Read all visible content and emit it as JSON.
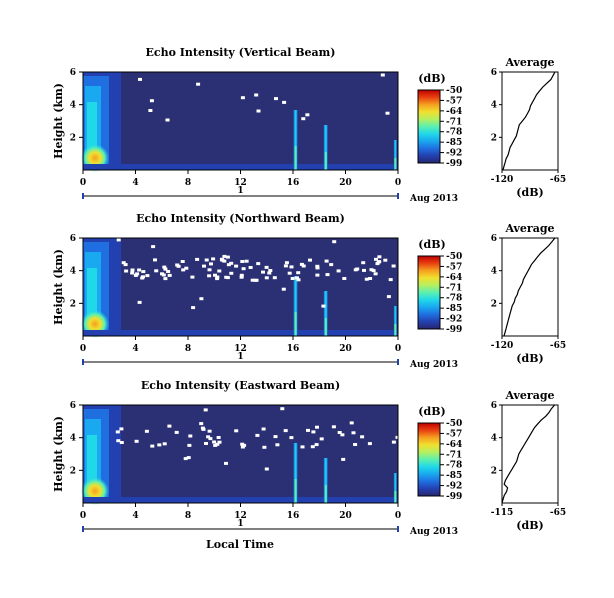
{
  "panels": [
    {
      "title": "Echo Intensity (Vertical Beam)",
      "average_title": "Average",
      "avg_xticks": [
        "-120",
        "-65"
      ],
      "avg_profile": [
        -68,
        -70,
        -72,
        -76,
        -80,
        -83,
        -86,
        -88,
        -90,
        -92,
        -93,
        -95,
        -97,
        -100,
        -103,
        -104,
        -105,
        -106,
        -108,
        -110,
        -112,
        -113,
        -114,
        -116,
        -117,
        -118,
        -119
      ]
    },
    {
      "title": "Echo Intensity (Northward Beam)",
      "average_title": "Average",
      "avg_xticks": [
        "-120",
        "-65"
      ],
      "avg_profile": [
        -68,
        -71,
        -74,
        -78,
        -82,
        -85,
        -88,
        -91,
        -93,
        -95,
        -97,
        -99,
        -100,
        -102,
        -104,
        -105,
        -107,
        -108,
        -110,
        -111,
        -112,
        -113,
        -114,
        -115,
        -116,
        -117,
        -118
      ]
    },
    {
      "title": "Echo Intensity (Eastward Beam)",
      "average_title": "Average",
      "avg_xticks": [
        "-115",
        "-65"
      ],
      "avg_profile": [
        -68,
        -71,
        -73,
        -76,
        -80,
        -83,
        -86,
        -88,
        -90,
        -92,
        -94,
        -96,
        -98,
        -100,
        -101,
        -102,
        -104,
        -106,
        -108,
        -110,
        -112,
        -113,
        -110,
        -111,
        -113,
        -114,
        -115
      ]
    }
  ],
  "ylabel": "Height (km)",
  "yticks": [
    "6",
    "4",
    "2"
  ],
  "xticks": [
    "0",
    "4",
    "8",
    "12",
    "16",
    "20",
    "0"
  ],
  "day_label": "1",
  "date_label": "Aug 2013",
  "colorbar_unit": "(dB)",
  "colorbar_ticks": [
    "-50",
    "-57",
    "-64",
    "-71",
    "-78",
    "-85",
    "-92",
    "-99"
  ],
  "avg_ylabel": "(dB)",
  "xlabel": "Local Time",
  "colors": {
    "background_field": "#2b2f73",
    "colorscale": [
      "#26266e",
      "#2340b0",
      "#1f6fe0",
      "#1aa8f0",
      "#21d8e8",
      "#5cf0b0",
      "#b5f060",
      "#f0e030",
      "#f5a020",
      "#e84010",
      "#c00000"
    ]
  },
  "chart_data": {
    "type": "heatmap",
    "series_names": [
      "Vertical Beam",
      "Northward Beam",
      "Eastward Beam"
    ],
    "x_range_hours": [
      0,
      24
    ],
    "y_range_km": [
      0,
      6
    ],
    "value_range_db": [
      -99,
      -50
    ],
    "average_profiles_x_range_db": [
      [
        -120,
        -65
      ],
      [
        -120,
        -65
      ],
      [
        -115,
        -65
      ]
    ]
  }
}
